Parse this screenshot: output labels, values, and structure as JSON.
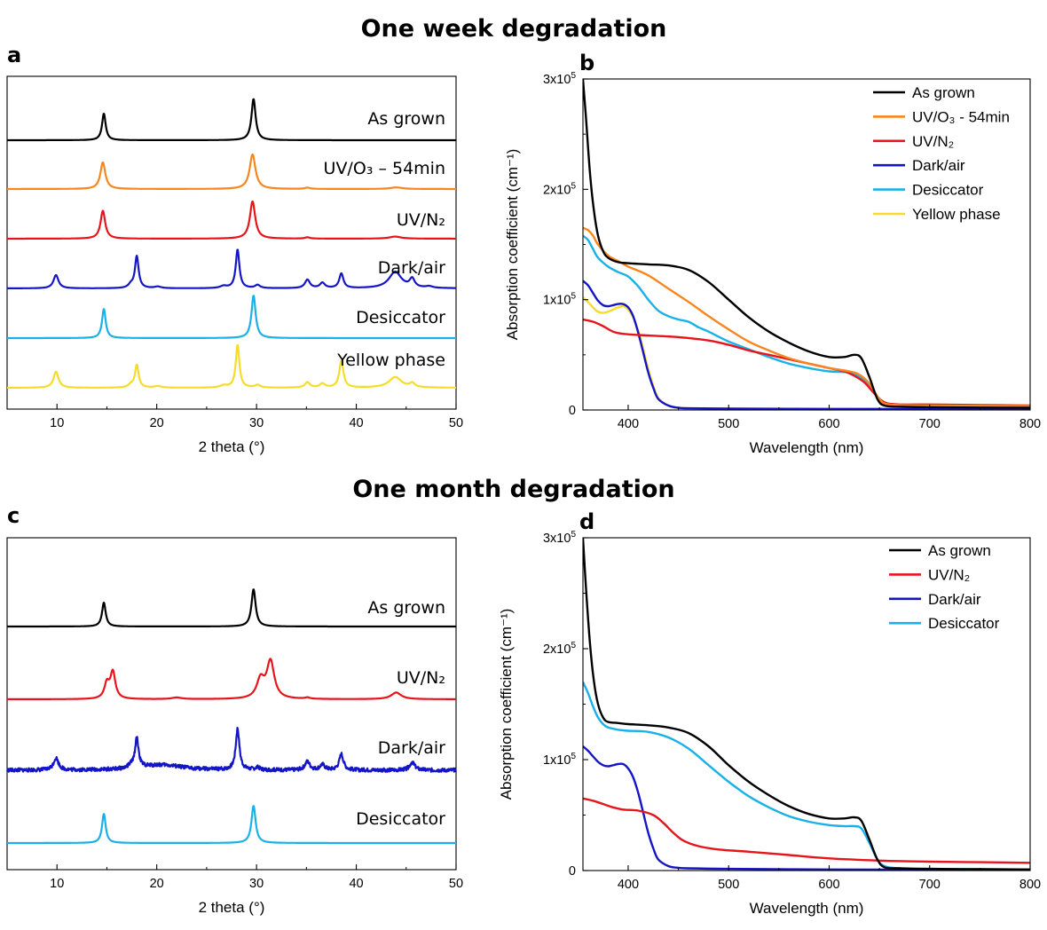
{
  "section_titles": [
    "One week degradation",
    "One month degradation"
  ],
  "colors": {
    "As grown": "#000000",
    "UV/O3 - 54min": "#f7861e",
    "UV/N2": "#e8141b",
    "Dark/air": "#1515c8",
    "Desiccator": "#1ab0e8",
    "Yellow phase": "#f5dc2a"
  },
  "chart_data": [
    {
      "panel": "a",
      "type": "line",
      "subtype": "stacked-xrd",
      "xlabel": "2 theta (°)",
      "xlim": [
        5,
        50
      ],
      "xticks": [
        10,
        20,
        30,
        40,
        50
      ],
      "ylabel": "",
      "series": [
        {
          "name": "As grown",
          "label": "As grown",
          "peaks": [
            [
              14.7,
              1.0,
              0.22
            ],
            [
              29.7,
              1.55,
              0.25
            ]
          ]
        },
        {
          "name": "UV/O3 - 54min",
          "label": "UV/O₃ – 54min",
          "peaks": [
            [
              14.6,
              1.0,
              0.3
            ],
            [
              29.6,
              1.3,
              0.35
            ],
            [
              35.1,
              0.05,
              0.3
            ],
            [
              44.0,
              0.06,
              0.7
            ]
          ]
        },
        {
          "name": "UV/N2",
          "label": "UV/N₂",
          "peaks": [
            [
              14.6,
              1.05,
              0.28
            ],
            [
              29.6,
              1.4,
              0.32
            ],
            [
              35.1,
              0.05,
              0.3
            ],
            [
              43.9,
              0.08,
              0.7
            ]
          ]
        },
        {
          "name": "Dark/air",
          "label": "Dark/air",
          "peaks": [
            [
              9.9,
              0.5,
              0.3
            ],
            [
              17.4,
              0.12,
              0.3
            ],
            [
              18.0,
              1.2,
              0.22
            ],
            [
              20.1,
              0.06,
              0.4
            ],
            [
              26.7,
              0.08,
              0.4
            ],
            [
              28.1,
              1.45,
              0.22
            ],
            [
              30.1,
              0.12,
              0.3
            ],
            [
              35.1,
              0.32,
              0.3
            ],
            [
              36.6,
              0.2,
              0.3
            ],
            [
              38.5,
              0.55,
              0.25
            ],
            [
              43.9,
              0.62,
              0.75
            ],
            [
              45.6,
              0.32,
              0.3
            ],
            [
              47.3,
              0.06,
              0.4
            ]
          ]
        },
        {
          "name": "Desiccator",
          "label": "Desiccator",
          "peaks": [
            [
              14.7,
              1.1,
              0.22
            ],
            [
              29.7,
              1.6,
              0.25
            ]
          ]
        },
        {
          "name": "Yellow phase",
          "label": "Yellow phase",
          "peaks": [
            [
              9.9,
              0.6,
              0.3
            ],
            [
              17.4,
              0.1,
              0.3
            ],
            [
              18.0,
              0.85,
              0.22
            ],
            [
              20.1,
              0.06,
              0.4
            ],
            [
              26.7,
              0.08,
              0.4
            ],
            [
              28.1,
              1.6,
              0.22
            ],
            [
              30.1,
              0.1,
              0.3
            ],
            [
              35.1,
              0.2,
              0.3
            ],
            [
              36.6,
              0.15,
              0.3
            ],
            [
              38.5,
              1.0,
              0.25
            ],
            [
              43.9,
              0.4,
              0.75
            ],
            [
              45.6,
              0.15,
              0.3
            ]
          ]
        }
      ]
    },
    {
      "panel": "b",
      "type": "line",
      "xlabel": "Wavelength (nm)",
      "ylabel": "Absorption coefficient (cm⁻¹)",
      "xlim": [
        355,
        800
      ],
      "ylim": [
        0,
        300000
      ],
      "xticks": [
        400,
        500,
        600,
        700,
        800
      ],
      "yticks": [
        0,
        100000,
        200000,
        300000
      ],
      "ytick_labels": [
        "0",
        "1x10⁵",
        "2x10⁵",
        "3x10⁵"
      ],
      "legend_position": "top-right",
      "series": [
        {
          "name": "As grown",
          "x": [
            355,
            358,
            362,
            366,
            370,
            375,
            380,
            390,
            400,
            420,
            440,
            460,
            480,
            500,
            520,
            540,
            560,
            580,
            600,
            615,
            625,
            632,
            640,
            648,
            655,
            670,
            700,
            750,
            800
          ],
          "y": [
            300000,
            265000,
            215000,
            180000,
            158000,
            144000,
            138000,
            134000,
            133000,
            132000,
            131000,
            127000,
            116000,
            100000,
            84000,
            71000,
            61000,
            53000,
            48000,
            48000,
            50000,
            47000,
            30000,
            10000,
            4000,
            3000,
            2500,
            2200,
            2000
          ]
        },
        {
          "name": "UV/O3 - 54min",
          "label": "UV/O₃ - 54min",
          "x": [
            355,
            360,
            365,
            370,
            380,
            390,
            400,
            420,
            440,
            460,
            480,
            500,
            520,
            540,
            560,
            580,
            600,
            620,
            630,
            640,
            650,
            660,
            700,
            800
          ],
          "y": [
            165000,
            163000,
            158000,
            150000,
            140000,
            135000,
            130000,
            122000,
            110000,
            98000,
            85000,
            73000,
            62000,
            54000,
            47000,
            42000,
            38000,
            35000,
            32000,
            24000,
            10000,
            5000,
            4000,
            3500
          ]
        },
        {
          "name": "UV/N2",
          "label": "UV/N₂",
          "x": [
            355,
            365,
            375,
            385,
            395,
            410,
            450,
            480,
            500,
            520,
            540,
            560,
            580,
            600,
            615,
            625,
            635,
            645,
            655,
            670,
            700,
            750,
            800
          ],
          "y": [
            82000,
            80000,
            76000,
            71000,
            69000,
            68000,
            66000,
            63000,
            59000,
            54000,
            50000,
            46000,
            42000,
            38000,
            35000,
            31000,
            25000,
            15000,
            7000,
            5000,
            5000,
            4500,
            4000
          ]
        },
        {
          "name": "Dark/air",
          "x": [
            355,
            360,
            365,
            370,
            375,
            380,
            385,
            390,
            395,
            400,
            405,
            410,
            415,
            420,
            425,
            430,
            440,
            450,
            460,
            500,
            600,
            700,
            800
          ],
          "y": [
            117000,
            113000,
            106000,
            99000,
            95000,
            94000,
            95000,
            96000,
            96000,
            93000,
            85000,
            70000,
            52000,
            34000,
            20000,
            10000,
            4000,
            2000,
            1500,
            1200,
            1000,
            800,
            600
          ]
        },
        {
          "name": "Desiccator",
          "x": [
            355,
            360,
            365,
            370,
            380,
            390,
            400,
            410,
            420,
            430,
            440,
            450,
            460,
            470,
            480,
            500,
            520,
            540,
            560,
            580,
            600,
            620,
            630,
            640,
            650,
            660,
            700,
            800
          ],
          "y": [
            158000,
            154000,
            146000,
            138000,
            130000,
            125000,
            121000,
            112000,
            100000,
            90000,
            85000,
            82000,
            80000,
            75000,
            71000,
            62000,
            55000,
            48000,
            42000,
            38000,
            35000,
            34000,
            30000,
            22000,
            10000,
            5000,
            4000,
            3000
          ]
        },
        {
          "name": "Yellow phase",
          "x": [
            355,
            360,
            365,
            370,
            375,
            380,
            385,
            390,
            395,
            400,
            405,
            410,
            415,
            420,
            425,
            430,
            440,
            450,
            460,
            500,
            550,
            600,
            700,
            800
          ],
          "y": [
            102000,
            98000,
            93000,
            89000,
            88000,
            89000,
            91000,
            93000,
            94000,
            91000,
            84000,
            72000,
            55000,
            37000,
            22000,
            11000,
            4000,
            2000,
            1500,
            1200,
            1000,
            800,
            600,
            500
          ]
        }
      ]
    },
    {
      "panel": "c",
      "type": "line",
      "subtype": "stacked-xrd",
      "xlabel": "2 theta (°)",
      "xlim": [
        5,
        50
      ],
      "xticks": [
        10,
        20,
        30,
        40,
        50
      ],
      "ylabel": "",
      "series": [
        {
          "name": "As grown",
          "label": "As grown",
          "peaks": [
            [
              14.7,
              0.9,
              0.22
            ],
            [
              29.7,
              1.4,
              0.25
            ]
          ]
        },
        {
          "name": "UV/N2",
          "label": "UV/N₂",
          "peaks": [
            [
              15.0,
              0.55,
              0.3
            ],
            [
              15.6,
              1.0,
              0.3
            ],
            [
              22.0,
              0.06,
              0.6
            ],
            [
              30.4,
              0.7,
              0.45
            ],
            [
              31.4,
              1.4,
              0.45
            ],
            [
              35.1,
              0.05,
              0.3
            ],
            [
              44.0,
              0.25,
              0.6
            ]
          ]
        },
        {
          "name": "Dark/air",
          "label": "Dark/air",
          "noisy": true,
          "peaks": [
            [
              9.9,
              0.45,
              0.3
            ],
            [
              17.4,
              0.1,
              0.3
            ],
            [
              18.0,
              1.1,
              0.22
            ],
            [
              20.5,
              0.2,
              2.5
            ],
            [
              28.1,
              1.55,
              0.22
            ],
            [
              30.1,
              0.08,
              0.3
            ],
            [
              35.1,
              0.32,
              0.3
            ],
            [
              36.6,
              0.2,
              0.3
            ],
            [
              38.5,
              0.6,
              0.25
            ],
            [
              45.6,
              0.3,
              0.3
            ]
          ]
        },
        {
          "name": "Desiccator",
          "label": "Desiccator",
          "peaks": [
            [
              14.7,
              1.1,
              0.22
            ],
            [
              29.7,
              1.4,
              0.25
            ]
          ]
        }
      ]
    },
    {
      "panel": "d",
      "type": "line",
      "xlabel": "Wavelength (nm)",
      "ylabel": "Absorption coefficient (cm⁻¹)",
      "xlim": [
        355,
        800
      ],
      "ylim": [
        0,
        300000
      ],
      "xticks": [
        400,
        500,
        600,
        700,
        800
      ],
      "yticks": [
        0,
        100000,
        200000,
        300000
      ],
      "ytick_labels": [
        "0",
        "1x10⁵",
        "2x10⁵",
        "3x10⁵"
      ],
      "legend_position": "top-right",
      "series": [
        {
          "name": "As grown",
          "x": [
            355,
            358,
            362,
            366,
            370,
            375,
            380,
            390,
            400,
            420,
            440,
            460,
            480,
            500,
            520,
            540,
            560,
            580,
            600,
            615,
            625,
            632,
            640,
            648,
            655,
            670,
            700,
            750,
            800
          ],
          "y": [
            300000,
            255000,
            205000,
            170000,
            150000,
            138000,
            134000,
            133000,
            132000,
            131000,
            129000,
            124000,
            112000,
            95000,
            80000,
            68000,
            58000,
            51000,
            47000,
            47000,
            48000,
            45000,
            28000,
            10000,
            3000,
            2000,
            1500,
            1200,
            1000
          ]
        },
        {
          "name": "UV/N2",
          "label": "UV/N₂",
          "x": [
            355,
            365,
            375,
            385,
            395,
            410,
            425,
            435,
            445,
            455,
            470,
            490,
            520,
            560,
            600,
            650,
            700,
            750,
            800
          ],
          "y": [
            65000,
            63000,
            60000,
            57000,
            55000,
            54000,
            50000,
            43000,
            34000,
            27000,
            22000,
            19000,
            17000,
            14000,
            11000,
            9000,
            8000,
            7500,
            7000
          ]
        },
        {
          "name": "Dark/air",
          "x": [
            355,
            360,
            365,
            370,
            375,
            380,
            385,
            390,
            395,
            400,
            405,
            410,
            415,
            420,
            425,
            430,
            440,
            450,
            460,
            500,
            600,
            700,
            800
          ],
          "y": [
            112000,
            108000,
            103000,
            98000,
            95000,
            94000,
            95000,
            96000,
            96000,
            92000,
            84000,
            70000,
            52000,
            34000,
            20000,
            10000,
            4000,
            2500,
            2000,
            1500,
            1000,
            800,
            600
          ]
        },
        {
          "name": "Desiccator",
          "x": [
            355,
            360,
            365,
            370,
            375,
            380,
            390,
            400,
            420,
            440,
            460,
            480,
            500,
            520,
            540,
            560,
            580,
            600,
            615,
            625,
            632,
            640,
            648,
            655,
            670,
            700,
            800
          ],
          "y": [
            170000,
            160000,
            148000,
            138000,
            132000,
            129000,
            127000,
            126000,
            125000,
            120000,
            110000,
            95000,
            80000,
            67000,
            57000,
            49000,
            44000,
            41000,
            40000,
            40000,
            38000,
            25000,
            10000,
            4000,
            2000,
            1500,
            1000
          ]
        }
      ]
    }
  ],
  "legends": {
    "b": [
      "As grown",
      "UV/O3 - 54min",
      "UV/N2",
      "Dark/air",
      "Desiccator",
      "Yellow phase"
    ],
    "d": [
      "As grown",
      "UV/N2",
      "Dark/air",
      "Desiccator"
    ]
  }
}
